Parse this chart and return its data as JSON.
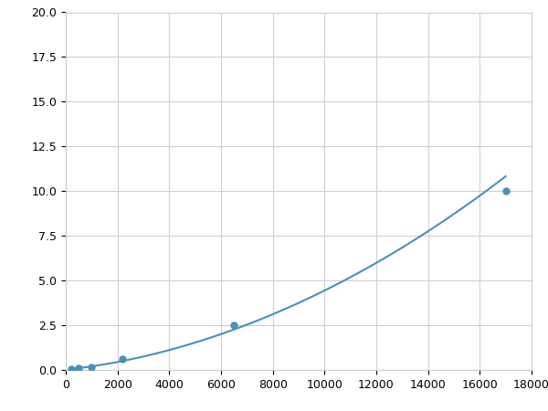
{
  "x_points": [
    200,
    500,
    1000,
    2200,
    6500,
    17000
  ],
  "y_points": [
    0.05,
    0.1,
    0.15,
    0.6,
    2.5,
    10.0
  ],
  "line_color": "#4a90b8",
  "marker_color": "#4a90b8",
  "marker_size": 5,
  "line_width": 1.5,
  "xlim": [
    0,
    18000
  ],
  "ylim": [
    0,
    20
  ],
  "xticks": [
    0,
    2000,
    4000,
    6000,
    8000,
    10000,
    12000,
    14000,
    16000,
    18000
  ],
  "yticks": [
    0.0,
    2.5,
    5.0,
    7.5,
    10.0,
    12.5,
    15.0,
    17.5,
    20.0
  ],
  "grid_color": "#d0d0d0",
  "background_color": "#ffffff",
  "figsize": [
    6.0,
    4.5
  ],
  "dpi": 100
}
